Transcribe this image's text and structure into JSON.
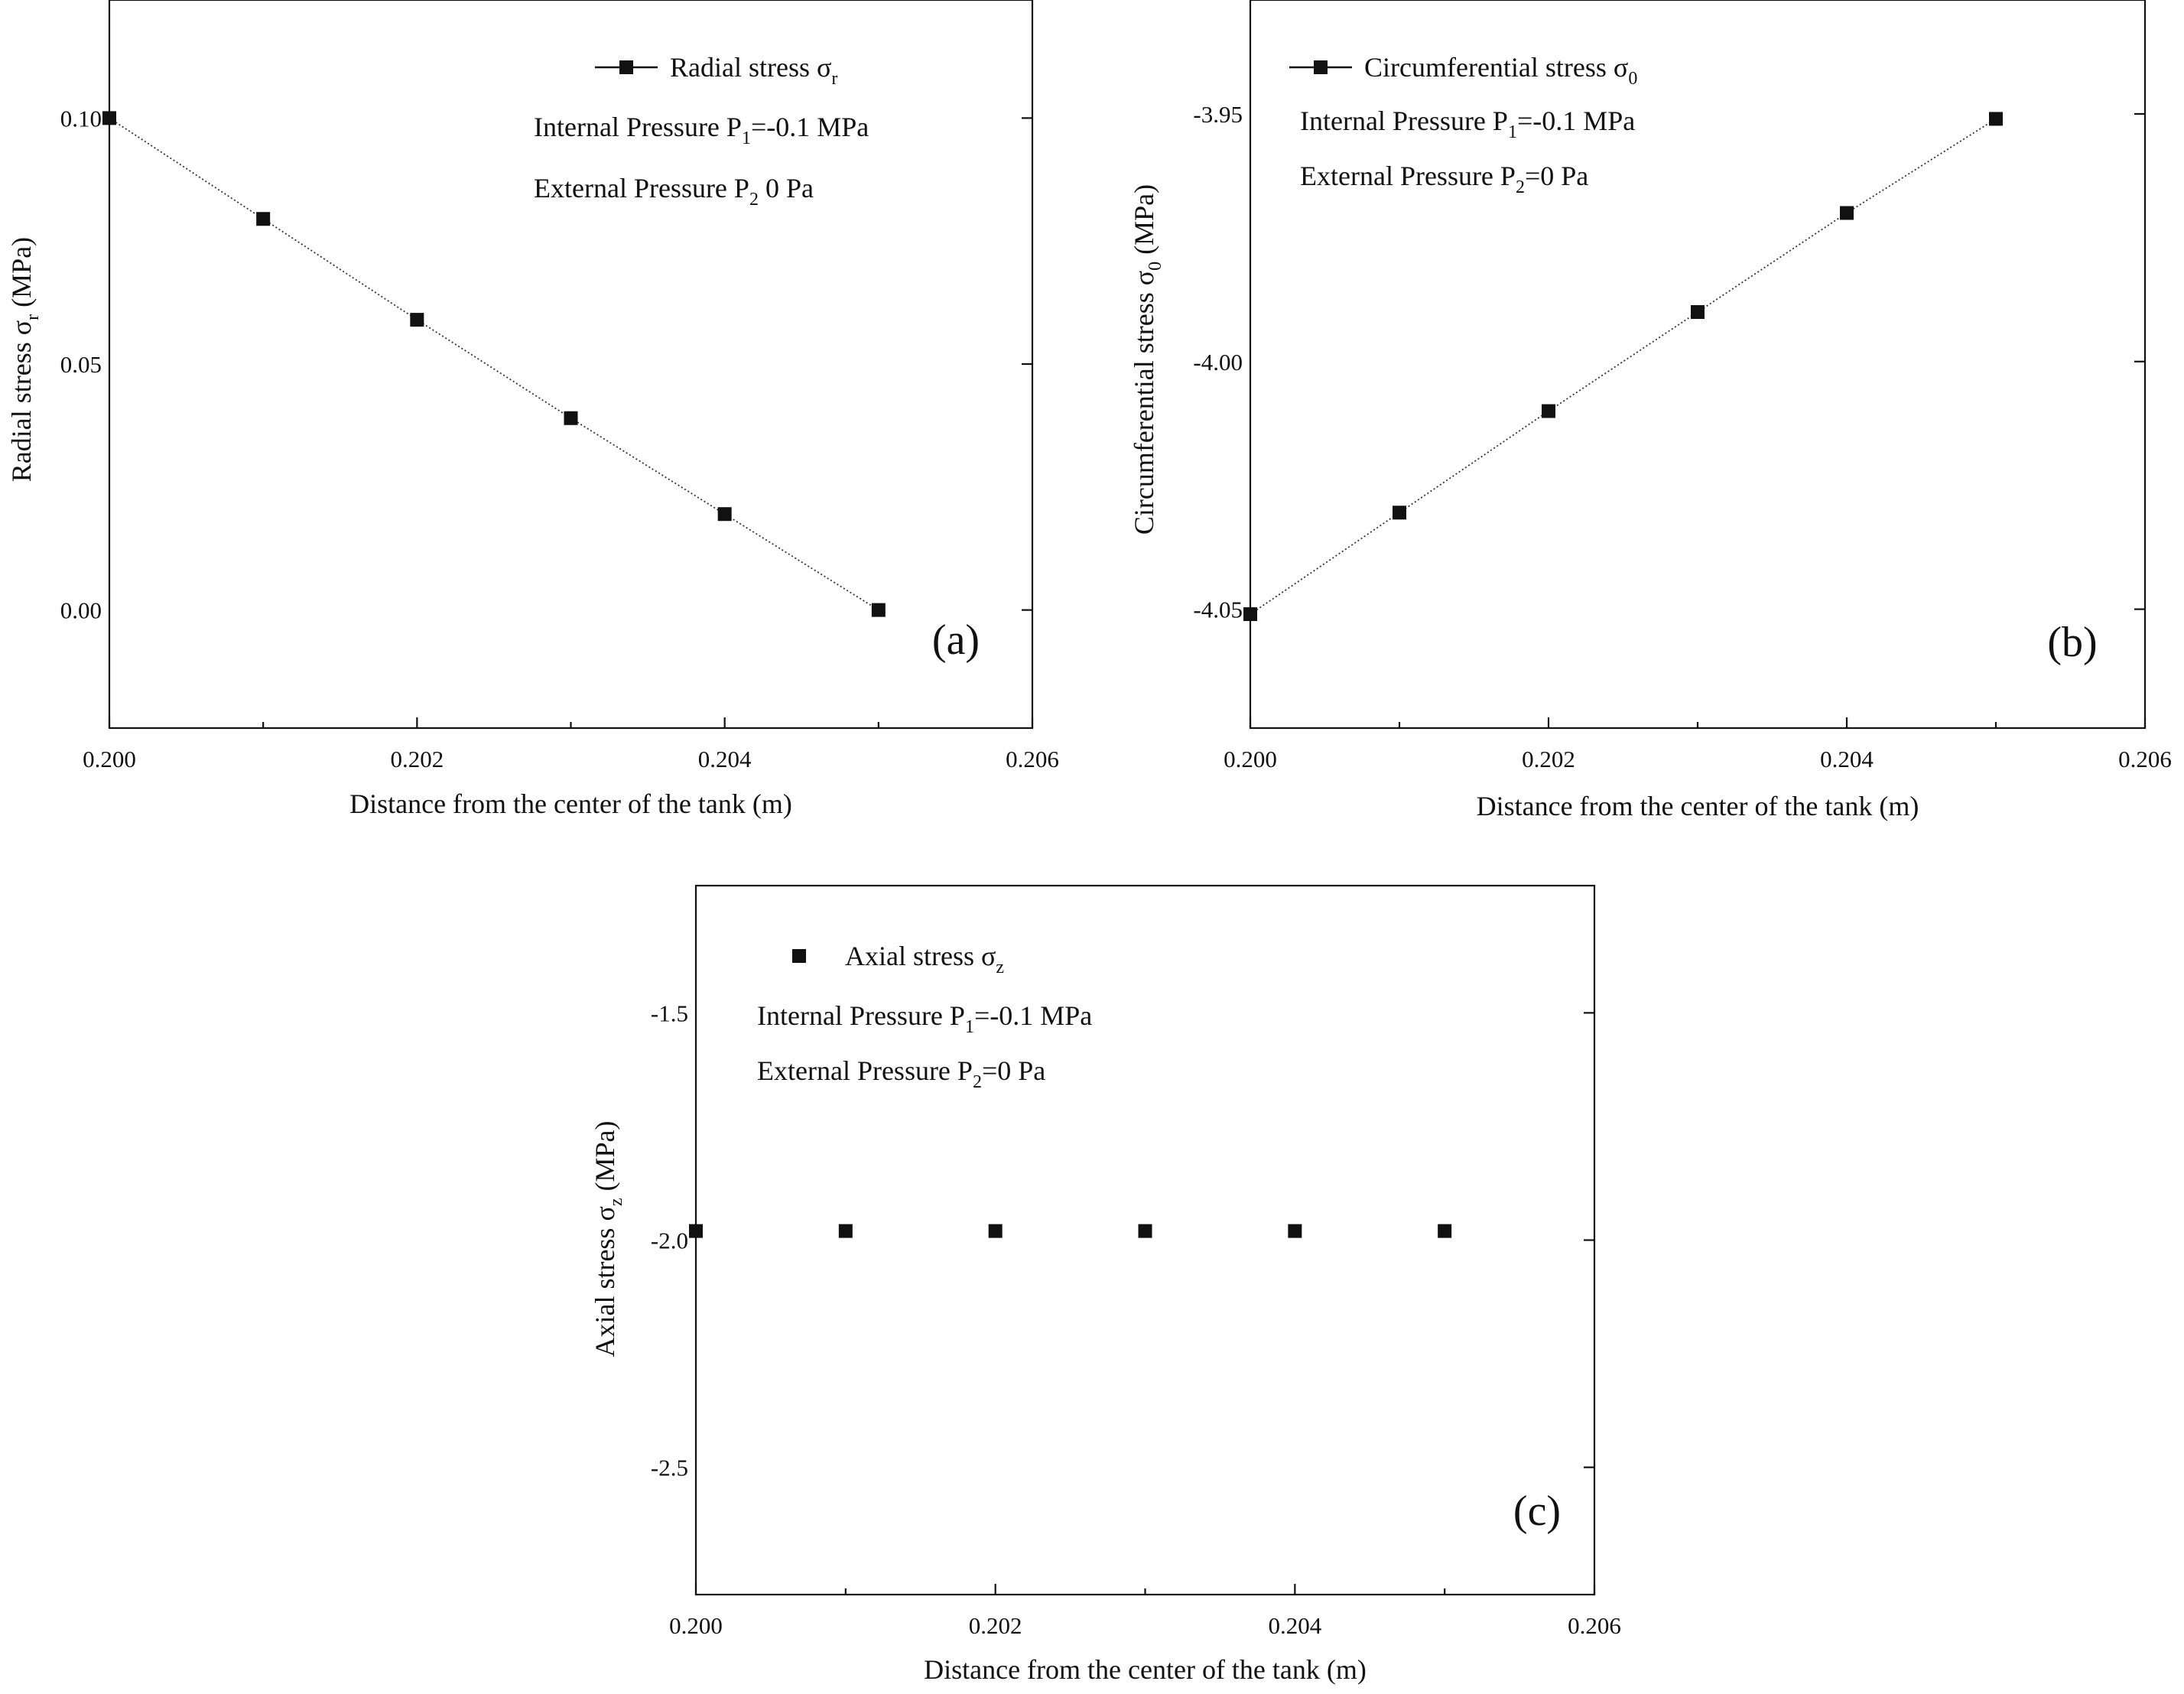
{
  "chart_data": [
    {
      "type": "line",
      "panel_label": "(a)",
      "xlabel": "Distance from the center of the tank (m)",
      "ylabel": {
        "text": "Radial stress σ",
        "sub": "r",
        "unit": " (MPa)"
      },
      "xlim": [
        0.2,
        0.206
      ],
      "ylim": [
        -0.024,
        0.124
      ],
      "x_ticks": [
        "0.200",
        "0.202",
        "0.204",
        "0.206"
      ],
      "y_ticks": [
        "0.00",
        "0.05",
        "0.10"
      ],
      "y_tick_values": [
        0.0,
        0.05,
        0.1
      ],
      "legend": {
        "text": "Radial stress σ",
        "sub": "r",
        "placement": "top-right",
        "marker": "line-square"
      },
      "annotations": [
        {
          "pre": "Internal Pressure P",
          "sub": "1",
          "post": "=-0.1 MPa"
        },
        {
          "pre": "External Pressure P",
          "sub": "2",
          "post": " 0 Pa"
        }
      ],
      "series": [
        {
          "x": [
            0.2,
            0.201,
            0.202,
            0.203,
            0.204,
            0.205
          ],
          "y": [
            0.1,
            0.0795,
            0.059,
            0.039,
            0.0195,
            0.0
          ],
          "connected": true
        }
      ]
    },
    {
      "type": "line",
      "panel_label": "(b)",
      "xlabel": "Distance from the center of the tank (m)",
      "ylabel": {
        "text": "Circumferential stress σ",
        "sub": "0",
        "unit": " (MPa)"
      },
      "xlim": [
        0.2,
        0.206
      ],
      "ylim": [
        -4.074,
        -3.927
      ],
      "x_ticks": [
        "0.200",
        "0.202",
        "0.204",
        "0.206"
      ],
      "y_ticks": [
        "-4.05",
        "-4.00",
        "-3.95"
      ],
      "y_tick_values": [
        -4.05,
        -4.0,
        -3.95
      ],
      "legend": {
        "text": "Circumferential stress σ",
        "sub": "0",
        "placement": "top-left",
        "marker": "line-square"
      },
      "annotations": [
        {
          "pre": "Internal Pressure P",
          "sub": "1",
          "post": "=-0.1 MPa"
        },
        {
          "pre": "External Pressure P",
          "sub": "2",
          "post": "=0 Pa"
        }
      ],
      "series": [
        {
          "x": [
            0.2,
            0.201,
            0.202,
            0.203,
            0.204,
            0.205
          ],
          "y": [
            -4.051,
            -4.0305,
            -4.01,
            -3.99,
            -3.97,
            -3.951
          ],
          "connected": true
        }
      ]
    },
    {
      "type": "scatter",
      "panel_label": "(c)",
      "xlabel": "Distance from the center of the tank (m)",
      "ylabel": {
        "text": "Axial stress σ",
        "sub": "z",
        "unit": " (MPa)"
      },
      "xlim": [
        0.2,
        0.206
      ],
      "ylim": [
        -2.78,
        -1.22
      ],
      "x_ticks": [
        "0.200",
        "0.202",
        "0.204",
        "0.206"
      ],
      "y_ticks": [
        "-2.5",
        "-2.0",
        "-1.5"
      ],
      "y_tick_values": [
        -2.5,
        -2.0,
        -1.5
      ],
      "legend": {
        "text": "Axial stress σ",
        "sub": "z",
        "placement": "top-left",
        "marker": "square"
      },
      "annotations": [
        {
          "pre": "Internal Pressure P",
          "sub": "1",
          "post": "=-0.1 MPa"
        },
        {
          "pre": "External Pressure P",
          "sub": "2",
          "post": "=0 Pa"
        }
      ],
      "series": [
        {
          "x": [
            0.2,
            0.201,
            0.202,
            0.203,
            0.204,
            0.205
          ],
          "y": [
            -1.98,
            -1.98,
            -1.98,
            -1.98,
            -1.98,
            -1.98
          ],
          "connected": false
        }
      ]
    }
  ]
}
